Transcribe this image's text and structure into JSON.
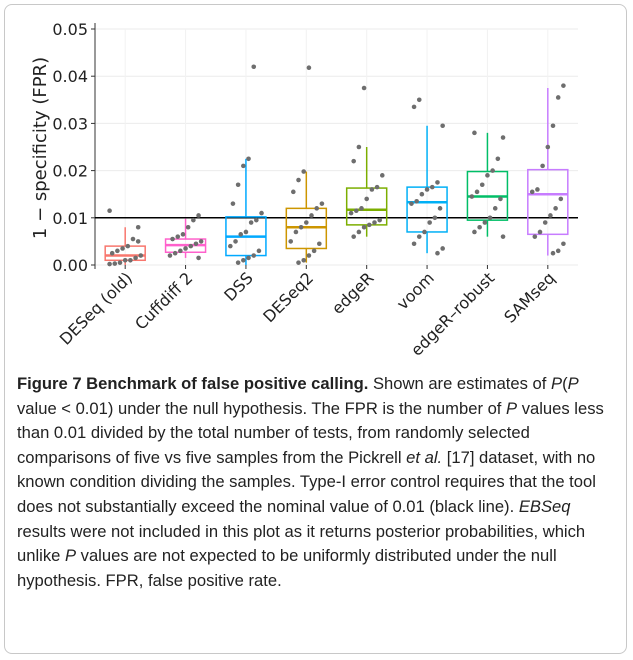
{
  "chart_data": {
    "type": "box",
    "y_label": "1 − specificity (FPR)",
    "ylim": [
      0,
      0.05
    ],
    "yticks": [
      {
        "value": 0,
        "label": "0.00"
      },
      {
        "value": 0.01,
        "label": "0.01"
      },
      {
        "value": 0.02,
        "label": "0.02"
      },
      {
        "value": 0.03,
        "label": "0.03"
      },
      {
        "value": 0.04,
        "label": "0.04"
      },
      {
        "value": 0.05,
        "label": "0.05"
      }
    ],
    "grid": true,
    "reference_line": 0.01,
    "reference_color": "#000000",
    "point_color": "#6e6e6e",
    "series": [
      {
        "name": "DESeq (old)",
        "color": "#F8766D",
        "whisker_low": 0,
        "q1": 0.001,
        "median": 0.002,
        "q3": 0.004,
        "whisker_high": 0.008,
        "points": [
          0.0115,
          0.008,
          0.0055,
          0.004,
          0.0035,
          0.003,
          0.0025,
          0.002,
          0.0015,
          0.001,
          0.001,
          0.0005,
          0.0003,
          0.0002,
          0.005
        ]
      },
      {
        "name": "Cuffdiff 2",
        "color": "#FF61CC",
        "whisker_low": 0.0015,
        "q1": 0.0027,
        "median": 0.0042,
        "q3": 0.0055,
        "whisker_high": 0.0098,
        "points": [
          0.0105,
          0.0095,
          0.008,
          0.0065,
          0.006,
          0.0055,
          0.005,
          0.0045,
          0.004,
          0.0035,
          0.003,
          0.0025,
          0.002,
          0.0015
        ]
      },
      {
        "name": "DSS",
        "color": "#00A9FF",
        "whisker_low": 0,
        "q1": 0.002,
        "median": 0.006,
        "q3": 0.0102,
        "whisker_high": 0.0225,
        "points": [
          0.042,
          0.0225,
          0.021,
          0.017,
          0.013,
          0.011,
          0.0095,
          0.009,
          0.007,
          0.0065,
          0.005,
          0.004,
          0.003,
          0.002,
          0.0015,
          0.001,
          0.0005
        ]
      },
      {
        "name": "DESeq2",
        "color": "#CD9600",
        "whisker_low": 0.0005,
        "q1": 0.0035,
        "median": 0.008,
        "q3": 0.012,
        "whisker_high": 0.0198,
        "points": [
          0.0418,
          0.0198,
          0.018,
          0.0155,
          0.013,
          0.012,
          0.0105,
          0.009,
          0.008,
          0.007,
          0.005,
          0.0045,
          0.003,
          0.002,
          0.001,
          0.0005
        ]
      },
      {
        "name": "edgeR",
        "color": "#7CAE00",
        "whisker_low": 0.006,
        "q1": 0.0085,
        "median": 0.0117,
        "q3": 0.0163,
        "whisker_high": 0.025,
        "points": [
          0.0375,
          0.025,
          0.022,
          0.019,
          0.0165,
          0.016,
          0.014,
          0.012,
          0.0115,
          0.011,
          0.0095,
          0.009,
          0.0085,
          0.008,
          0.007,
          0.006
        ]
      },
      {
        "name": "voom",
        "color": "#00B0F6",
        "whisker_low": 0.0025,
        "q1": 0.007,
        "median": 0.0133,
        "q3": 0.0165,
        "whisker_high": 0.0295,
        "points": [
          0.035,
          0.0335,
          0.0295,
          0.0175,
          0.0165,
          0.016,
          0.015,
          0.0135,
          0.013,
          0.012,
          0.01,
          0.009,
          0.007,
          0.006,
          0.0045,
          0.0035,
          0.0025
        ]
      },
      {
        "name": "edgeR–robust",
        "color": "#00BE67",
        "whisker_low": 0.006,
        "q1": 0.0095,
        "median": 0.0145,
        "q3": 0.0198,
        "whisker_high": 0.028,
        "points": [
          0.028,
          0.027,
          0.0225,
          0.02,
          0.019,
          0.017,
          0.0155,
          0.0145,
          0.014,
          0.012,
          0.01,
          0.009,
          0.008,
          0.007,
          0.006
        ]
      },
      {
        "name": "SAMseq",
        "color": "#C77CFF",
        "whisker_low": 0.002,
        "q1": 0.0065,
        "median": 0.015,
        "q3": 0.0202,
        "whisker_high": 0.0375,
        "points": [
          0.038,
          0.0355,
          0.0295,
          0.025,
          0.021,
          0.016,
          0.0155,
          0.014,
          0.012,
          0.0105,
          0.009,
          0.007,
          0.006,
          0.0045,
          0.003,
          0.0025
        ]
      }
    ]
  },
  "caption": {
    "label": "Figure 7",
    "title": "Benchmark of false positive calling.",
    "segments": [
      {
        "text": "Shown are estimates of ",
        "italic": false
      },
      {
        "text": "P",
        "italic": true
      },
      {
        "text": "(",
        "italic": false
      },
      {
        "text": "P",
        "italic": true
      },
      {
        "text": " value < 0.01) under the null hypothesis. The FPR is the number of ",
        "italic": false
      },
      {
        "text": "P",
        "italic": true
      },
      {
        "text": " values less than 0.01 divided by the total number of tests, from randomly selected comparisons of five vs five samples from the Pickrell ",
        "italic": false
      },
      {
        "text": "et al.",
        "italic": true
      },
      {
        "text": " [17] dataset, with no known condition dividing the samples. Type-I error control requires that the tool does not substantially exceed the nominal value of 0.01 (black line). ",
        "italic": false
      },
      {
        "text": "EBSeq",
        "italic": true
      },
      {
        "text": " results were not included in this plot as it returns posterior probabilities, which unlike ",
        "italic": false
      },
      {
        "text": "P",
        "italic": true
      },
      {
        "text": " values are not expected to be uniformly distributed under the null hypothesis. FPR, false positive rate.",
        "italic": false
      }
    ]
  }
}
